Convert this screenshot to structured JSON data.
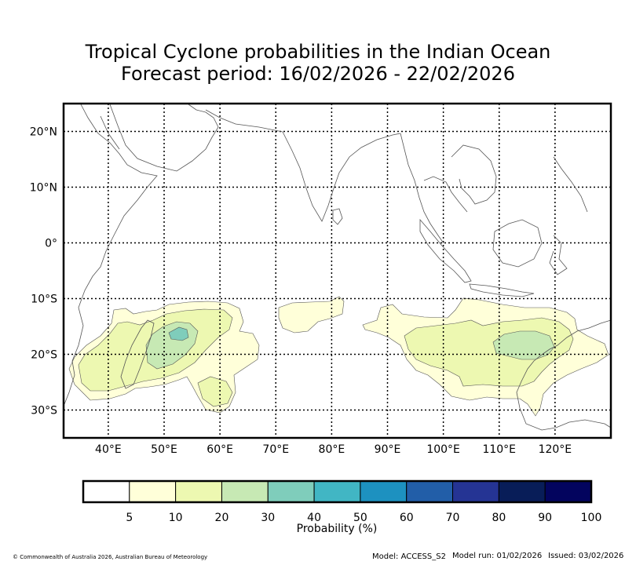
{
  "title": {
    "line1": "Tropical Cyclone probabilities in the Indian Ocean",
    "line2": "Forecast period: 16/02/2026 - 22/02/2026"
  },
  "map": {
    "lon_labels": [
      "40°E",
      "50°E",
      "60°E",
      "70°E",
      "80°E",
      "90°E",
      "100°E",
      "110°E",
      "120°E"
    ],
    "lat_labels": [
      "20°N",
      "10°N",
      "0°",
      "10°S",
      "20°S",
      "30°S"
    ],
    "lon_values": [
      40,
      50,
      60,
      70,
      80,
      90,
      100,
      110,
      120
    ],
    "lat_values": [
      20,
      10,
      0,
      -10,
      -20,
      -30
    ],
    "lon_range": [
      32,
      130
    ],
    "lat_range": [
      -35,
      25
    ]
  },
  "colorbar": {
    "label": "Probability (%)",
    "ticks": [
      "5",
      "10",
      "20",
      "30",
      "40",
      "50",
      "60",
      "70",
      "80",
      "90",
      "100"
    ],
    "colors": [
      "#ffffff",
      "#ffffd9",
      "#edf8b1",
      "#c7e9b4",
      "#7fcdbb",
      "#41b6c4",
      "#1d91c0",
      "#225ea8",
      "#253494",
      "#081d58",
      "#03045e"
    ]
  },
  "footer": {
    "copyright": "© Commonwealth of Australia 2026, Australian Bureau of Meteorology",
    "model": "Model: ACCESS_S2",
    "model_run": "Model run: 01/02/2026",
    "issued": "Issued: 03/02/2026"
  }
}
